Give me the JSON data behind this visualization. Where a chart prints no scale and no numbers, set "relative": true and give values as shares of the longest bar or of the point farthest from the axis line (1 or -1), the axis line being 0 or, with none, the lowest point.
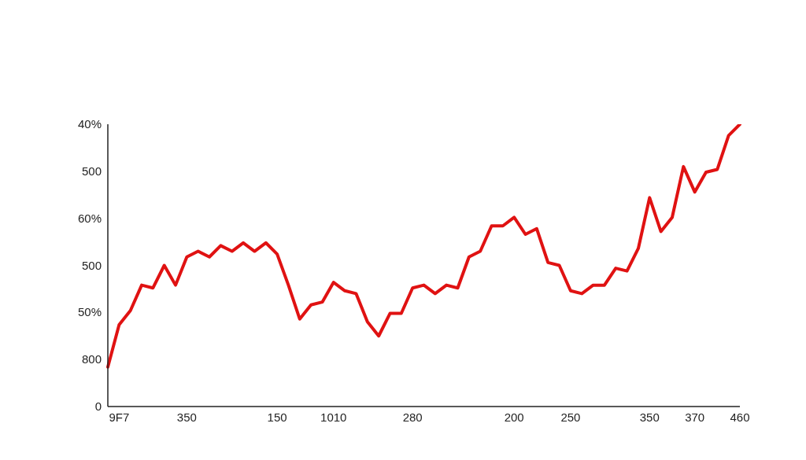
{
  "chart_data": {
    "type": "line",
    "relative": true,
    "categories": [
      null,
      "9F7",
      null,
      null,
      null,
      null,
      null,
      "350",
      null,
      null,
      null,
      null,
      null,
      null,
      null,
      "150",
      null,
      null,
      null,
      null,
      "1010",
      null,
      null,
      null,
      null,
      null,
      null,
      "280",
      null,
      null,
      null,
      null,
      null,
      null,
      null,
      null,
      "200",
      null,
      null,
      null,
      null,
      "250",
      null,
      null,
      null,
      null,
      null,
      null,
      "350",
      null,
      null,
      null,
      "370",
      null,
      null,
      null,
      "460"
    ],
    "series": [
      {
        "color": "#e01212",
        "values": [
          0.14,
          0.29,
          0.34,
          0.43,
          0.42,
          0.5,
          0.43,
          0.53,
          0.55,
          0.53,
          0.57,
          0.55,
          0.58,
          0.55,
          0.58,
          0.54,
          0.43,
          0.31,
          0.36,
          0.37,
          0.44,
          0.41,
          0.4,
          0.3,
          0.25,
          0.33,
          0.33,
          0.42,
          0.43,
          0.4,
          0.43,
          0.42,
          0.53,
          0.55,
          0.64,
          0.64,
          0.67,
          0.61,
          0.63,
          0.51,
          0.5,
          0.41,
          0.4,
          0.43,
          0.43,
          0.49,
          0.48,
          0.56,
          0.74,
          0.62,
          0.67,
          0.85,
          0.76,
          0.83,
          0.84,
          0.96,
          1
        ]
      }
    ],
    "annotations": [
      "40%",
      "500",
      "60%",
      "500",
      "50%",
      "800",
      "0"
    ],
    "grid": false,
    "marker": "none",
    "line_style": "solid",
    "legend": false
  }
}
